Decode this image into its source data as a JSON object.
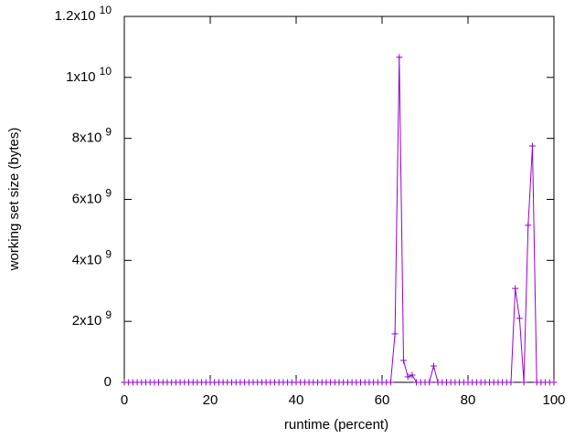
{
  "chart_data": {
    "type": "line",
    "xlabel": "runtime (percent)",
    "ylabel": "working set size (bytes)",
    "x": [
      0,
      1,
      2,
      3,
      4,
      5,
      6,
      7,
      8,
      9,
      10,
      11,
      12,
      13,
      14,
      15,
      16,
      17,
      18,
      19,
      20,
      21,
      22,
      23,
      24,
      25,
      26,
      27,
      28,
      29,
      30,
      31,
      32,
      33,
      34,
      35,
      36,
      37,
      38,
      39,
      40,
      41,
      42,
      43,
      44,
      45,
      46,
      47,
      48,
      49,
      50,
      51,
      52,
      53,
      54,
      55,
      56,
      57,
      58,
      59,
      60,
      61,
      62,
      63,
      64,
      65,
      66,
      67,
      68,
      69,
      70,
      71,
      72,
      73,
      74,
      75,
      76,
      77,
      78,
      79,
      80,
      81,
      82,
      83,
      84,
      85,
      86,
      87,
      88,
      89,
      90,
      91,
      92,
      93,
      94,
      95,
      96,
      97,
      98,
      99,
      100
    ],
    "series": [
      {
        "color": "#9400d3",
        "values": [
          0,
          0,
          0,
          0,
          0,
          0,
          0,
          0,
          0,
          0,
          0,
          0,
          0,
          0,
          0,
          0,
          0,
          0,
          0,
          0,
          0,
          0,
          0,
          0,
          0,
          0,
          0,
          0,
          0,
          0,
          0,
          0,
          0,
          0,
          0,
          0,
          0,
          0,
          0,
          0,
          0,
          0,
          0,
          0,
          0,
          0,
          0,
          0,
          0,
          0,
          0,
          0,
          0,
          0,
          0,
          0,
          0,
          0,
          0,
          0,
          0,
          0,
          0,
          1590000000,
          10660000000,
          720000000,
          180000000,
          240000000,
          0,
          0,
          0,
          0,
          540000000,
          0,
          0,
          0,
          0,
          0,
          0,
          0,
          0,
          0,
          0,
          0,
          0,
          0,
          0,
          0,
          0,
          0,
          0,
          3080000000,
          2100000000,
          0,
          5150000000,
          7750000000,
          0,
          0,
          0,
          0,
          0
        ]
      }
    ],
    "xlim": [
      0,
      100
    ],
    "xticks": [
      0,
      20,
      40,
      60,
      80,
      100
    ],
    "ylim": [
      0,
      12000000000
    ],
    "yticks": [
      0,
      {
        "value": 2000000000,
        "label": "2x10",
        "exponent": "9"
      },
      {
        "value": 4000000000,
        "label": "4x10",
        "exponent": "9"
      },
      {
        "value": 6000000000,
        "label": "6x10",
        "exponent": "9"
      },
      {
        "value": 8000000000,
        "label": "8x10",
        "exponent": "9"
      },
      {
        "value": 10000000000,
        "label": "1x10",
        "exponent": "10"
      },
      {
        "value": 12000000000,
        "label": "1.2x10",
        "exponent": "10"
      }
    ]
  }
}
